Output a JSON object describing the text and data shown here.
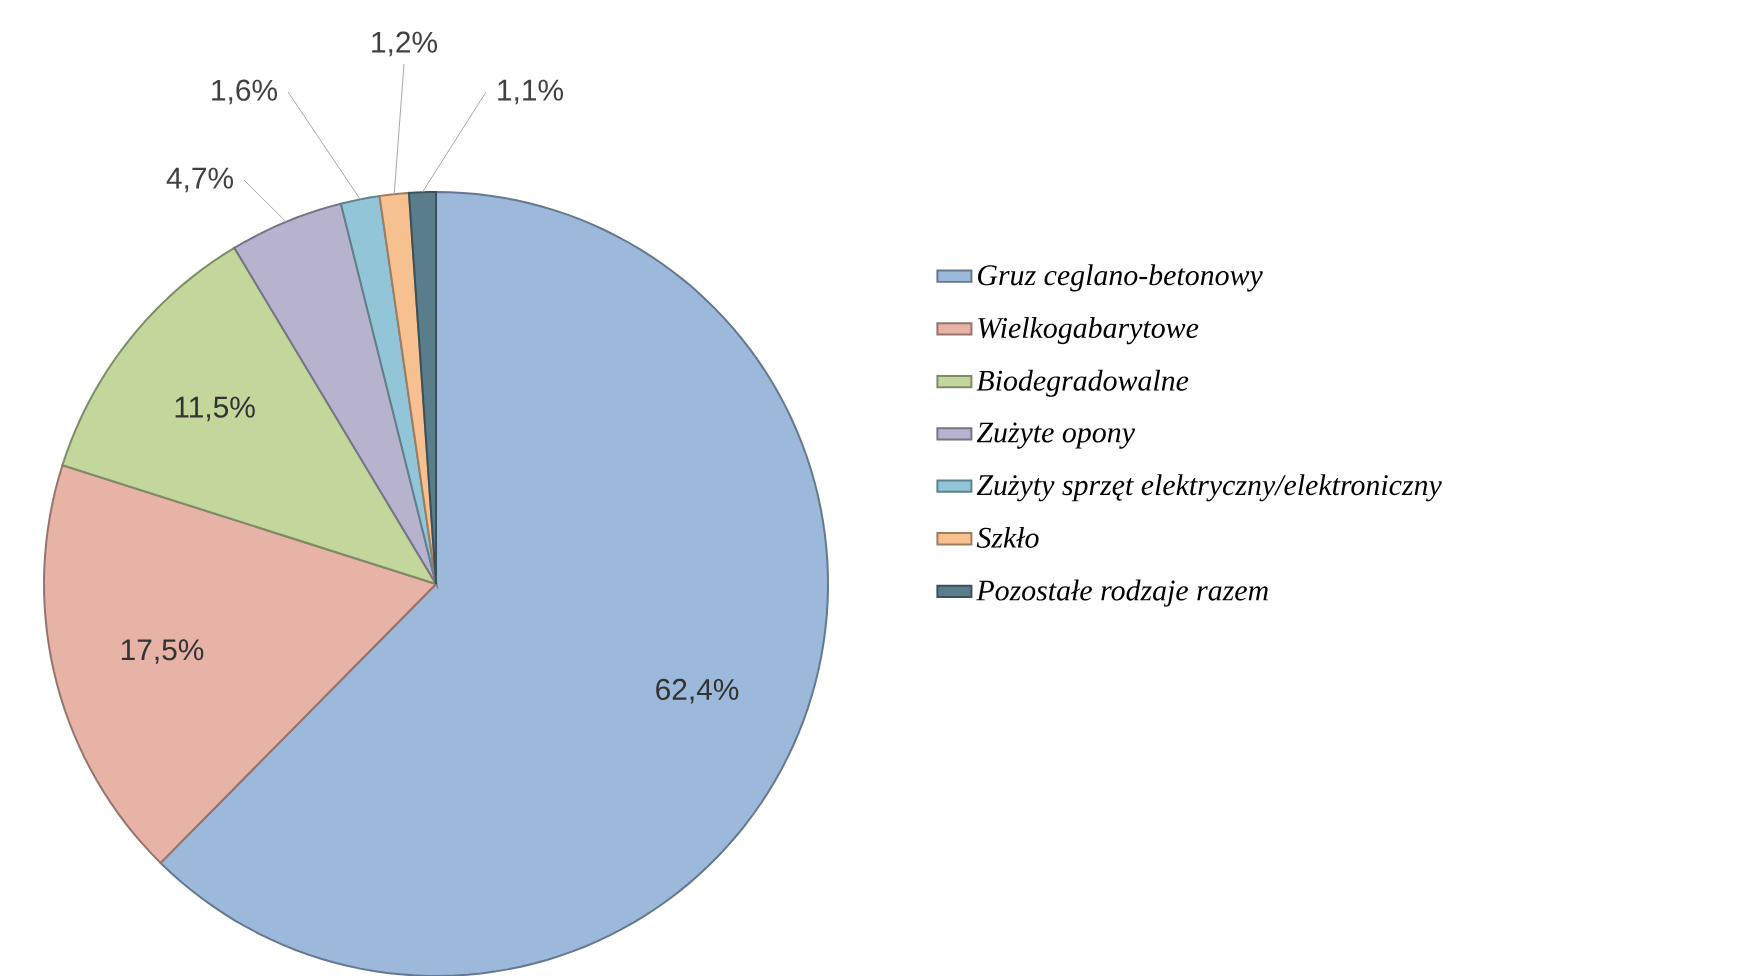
{
  "chart_data": {
    "type": "pie",
    "categories": [
      "Gruz ceglano-betonowy",
      "Wielkogabarytowe",
      "Biodegradowalne",
      "Zużyte opony",
      "Zużyty sprzęt elektryczny/elektroniczny",
      "Szkło",
      "Pozostałe rodzaje razem"
    ],
    "values": [
      62.4,
      17.5,
      11.5,
      4.7,
      1.6,
      1.2,
      1.1
    ],
    "value_labels": [
      "62,4%",
      "17,5%",
      "11,5%",
      "4,7%",
      "1,6%",
      "1,2%",
      "1,1%"
    ],
    "colors": [
      "#9cb8da",
      "#e6b3a6",
      "#c3d69b",
      "#b7b3cf",
      "#93c5d8",
      "#f6c090",
      "#5a7d8c"
    ],
    "legend": "right"
  }
}
